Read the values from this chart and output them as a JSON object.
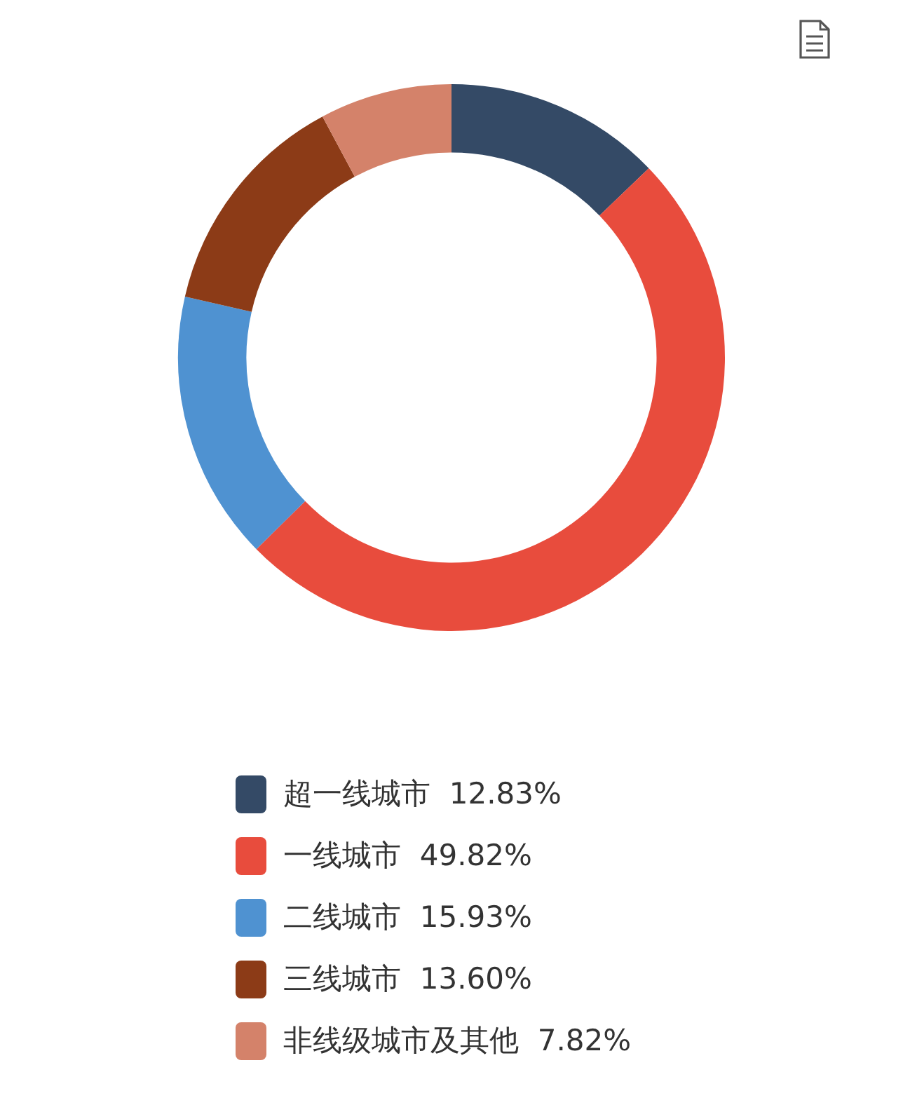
{
  "chart_data": {
    "type": "donut",
    "categories": [
      "超一线城市",
      "一线城市",
      "二线城市",
      "三线城市",
      "非线级城市及其他"
    ],
    "values": [
      12.83,
      49.82,
      15.93,
      13.6,
      7.82
    ],
    "value_labels": [
      "12.83%",
      "49.82%",
      "15.93%",
      "13.60%",
      "7.82%"
    ],
    "colors": [
      "#344a66",
      "#e84c3d",
      "#4f92d1",
      "#8c3b17",
      "#d4826a"
    ],
    "legend": "bottom"
  }
}
